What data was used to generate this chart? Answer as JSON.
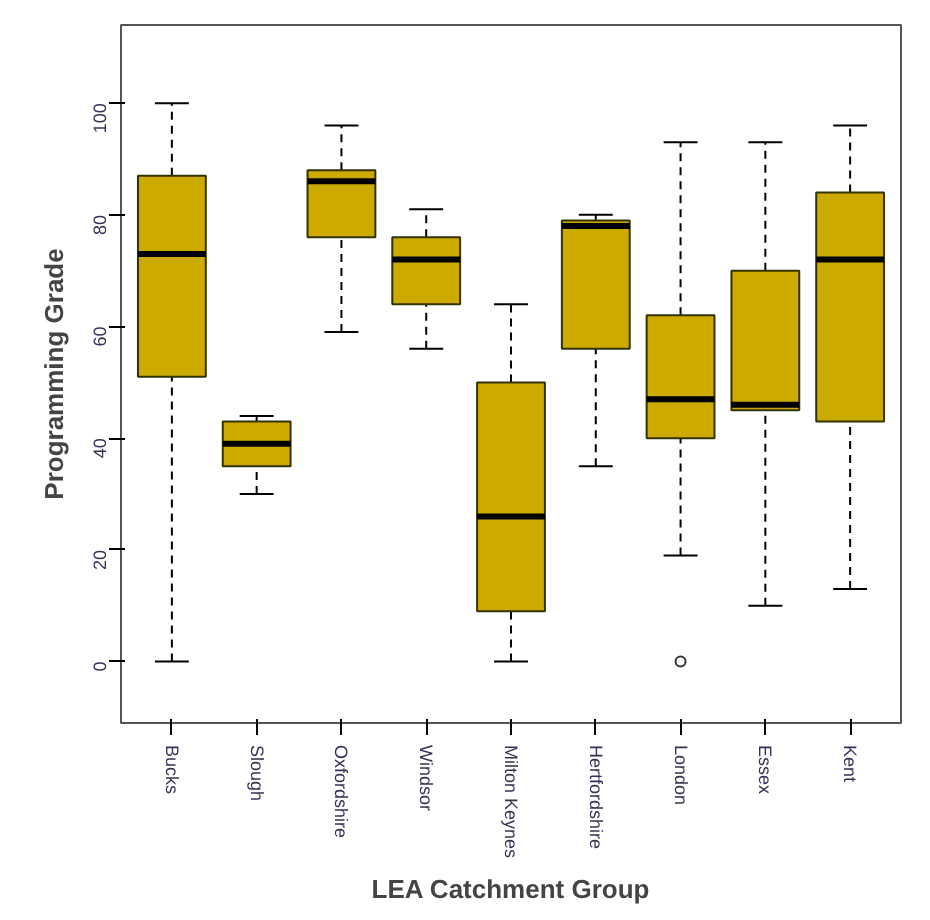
{
  "chart_data": {
    "type": "box",
    "xlabel": "LEA Catchment Group",
    "ylabel": "Programming Grade",
    "categories": [
      "Bucks",
      "Slough",
      "Oxfordshire",
      "Windsor",
      "Milton Keynes",
      "Hertfordshire",
      "London",
      "Essex",
      "Kent"
    ],
    "color": "#ccaa00",
    "boxes": [
      {
        "low": 0,
        "q1": 51,
        "median": 73,
        "q3": 87,
        "high": 100
      },
      {
        "low": 30,
        "q1": 35,
        "median": 39,
        "q3": 43,
        "high": 44
      },
      {
        "low": 59,
        "q1": 76,
        "median": 86,
        "q3": 88,
        "high": 96
      },
      {
        "low": 56,
        "q1": 64,
        "median": 72,
        "q3": 76,
        "high": 81
      },
      {
        "low": 0,
        "q1": 9,
        "median": 26,
        "q3": 50,
        "high": 64
      },
      {
        "low": 35,
        "q1": 56,
        "median": 78,
        "q3": 79,
        "high": 80
      },
      {
        "low": 19,
        "q1": 40,
        "median": 47,
        "q3": 62,
        "high": 93,
        "outliers": [
          0
        ]
      },
      {
        "low": 10,
        "q1": 45,
        "median": 46,
        "q3": 70,
        "high": 93
      },
      {
        "low": 13,
        "q1": 43,
        "median": 72,
        "q3": 84,
        "high": 96
      }
    ],
    "ylim": [
      -11,
      114
    ],
    "yticks": [
      0,
      20,
      40,
      60,
      80,
      100
    ],
    "grid": false
  }
}
